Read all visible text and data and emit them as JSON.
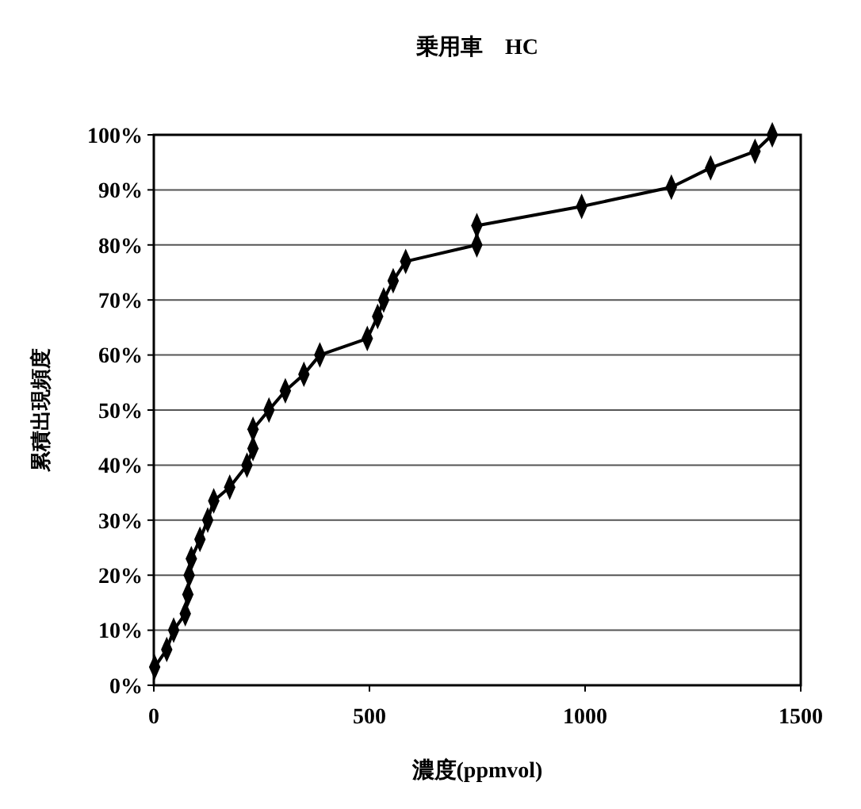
{
  "chart_data": {
    "type": "line",
    "title": "乗用車　HC",
    "xlabel": "濃度(ppmvol)",
    "ylabel": "累積出現頻度",
    "x": [
      2,
      30,
      46,
      73,
      79,
      82,
      87,
      107,
      125,
      139,
      176,
      216,
      230,
      230,
      267,
      305,
      348,
      385,
      495,
      519,
      533,
      555,
      584,
      749,
      749,
      992,
      1200,
      1291,
      1394,
      1434
    ],
    "series": [
      {
        "color": "#000000",
        "values": [
          3.3,
          6.5,
          10,
          13,
          16.5,
          20,
          23,
          26.5,
          30,
          33.5,
          36,
          40,
          43,
          46.5,
          50,
          53.5,
          56.5,
          60,
          63,
          67,
          70,
          73.5,
          77,
          80,
          83.5,
          87,
          90.5,
          94,
          97,
          100
        ]
      }
    ],
    "xlim": [
      0,
      1500
    ],
    "xticks": [
      0,
      500,
      1000,
      1500
    ],
    "ylim": [
      0,
      100
    ],
    "yticks": [
      {
        "value": 0,
        "label": "0%"
      },
      {
        "value": 10,
        "label": "10%"
      },
      {
        "value": 20,
        "label": "20%"
      },
      {
        "value": 30,
        "label": "30%"
      },
      {
        "value": 40,
        "label": "40%"
      },
      {
        "value": 50,
        "label": "50%"
      },
      {
        "value": 60,
        "label": "60%"
      },
      {
        "value": 70,
        "label": "70%"
      },
      {
        "value": 80,
        "label": "80%"
      },
      {
        "value": 90,
        "label": "90%"
      },
      {
        "value": 100,
        "label": "100%"
      }
    ],
    "grid": "y",
    "marker": "diamond",
    "line_style": "solid"
  }
}
